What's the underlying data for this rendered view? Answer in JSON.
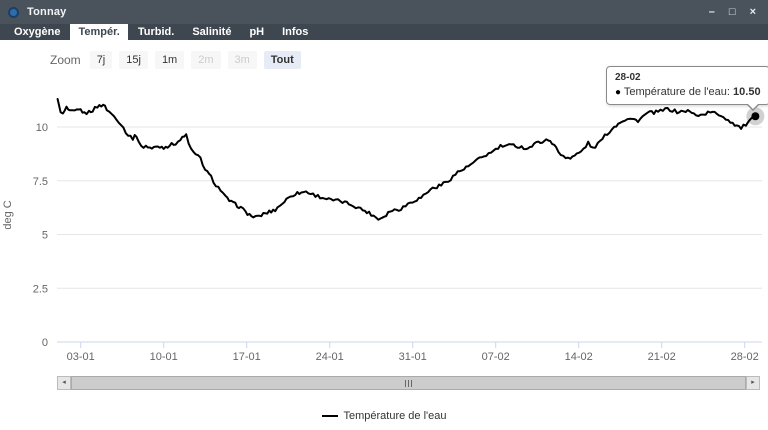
{
  "window": {
    "title": "Tonnay",
    "icons": {
      "minimize": "–",
      "maximize": "□",
      "close": "×",
      "scroll_left": "◂",
      "scroll_right": "▸"
    }
  },
  "tabs": [
    {
      "label": "Oxygène",
      "active": false
    },
    {
      "label": "Tempér.",
      "active": true
    },
    {
      "label": "Turbid.",
      "active": false
    },
    {
      "label": "Salinité",
      "active": false
    },
    {
      "label": "pH",
      "active": false
    },
    {
      "label": "Infos",
      "active": false
    }
  ],
  "zoom": {
    "label": "Zoom",
    "buttons": [
      {
        "label": "7j",
        "state": "normal"
      },
      {
        "label": "15j",
        "state": "normal"
      },
      {
        "label": "1m",
        "state": "normal"
      },
      {
        "label": "2m",
        "state": "disabled"
      },
      {
        "label": "3m",
        "state": "disabled"
      },
      {
        "label": "Tout",
        "state": "active"
      }
    ]
  },
  "tooltip": {
    "date": "28-02",
    "bullet": "●",
    "series_label": "Température de l'eau:",
    "value": "10.50"
  },
  "legend": {
    "label": "Température de l'eau"
  },
  "colors": {
    "titlebar_bg": "#4a535c",
    "tabbar_bg": "#3e474f",
    "accent_blue": "#2e6cad",
    "series": "#000000",
    "grid": "#e6e6e6",
    "axis_line": "#ccd6eb",
    "muted_text": "#666666",
    "button_active_bg": "#e6ebf5"
  },
  "chart_data": {
    "type": "line",
    "title": "",
    "xlabel": "",
    "ylabel": "deg C",
    "ylim": [
      0,
      11.5
    ],
    "grid": "horizontal",
    "legend_position": "bottom",
    "x_axis_note": "t = day index, t=1 is 01-01, t=59 is 28-02",
    "yticks": [
      {
        "v": 0,
        "label": "0"
      },
      {
        "v": 2.5,
        "label": "2.5"
      },
      {
        "v": 5,
        "label": "5"
      },
      {
        "v": 7.5,
        "label": "7.5"
      },
      {
        "v": 10,
        "label": "10"
      }
    ],
    "xticks": [
      {
        "t": 3,
        "label": "03-01"
      },
      {
        "t": 10,
        "label": "10-01"
      },
      {
        "t": 17,
        "label": "17-01"
      },
      {
        "t": 24,
        "label": "24-01"
      },
      {
        "t": 31,
        "label": "31-01"
      },
      {
        "t": 38,
        "label": "07-02"
      },
      {
        "t": 45,
        "label": "14-02"
      },
      {
        "t": 52,
        "label": "21-02"
      },
      {
        "t": 59,
        "label": "28-02"
      }
    ],
    "series": [
      {
        "name": "Température de l'eau",
        "color": "#000000",
        "points": [
          [
            1.05,
            11.25
          ],
          [
            1.3,
            10.75
          ],
          [
            1.5,
            10.58
          ],
          [
            1.8,
            10.9
          ],
          [
            2.1,
            10.7
          ],
          [
            2.5,
            10.72
          ],
          [
            3.0,
            10.8
          ],
          [
            3.3,
            10.62
          ],
          [
            3.7,
            10.7
          ],
          [
            4.0,
            10.78
          ],
          [
            4.4,
            10.95
          ],
          [
            4.9,
            11.05
          ],
          [
            5.2,
            10.82
          ],
          [
            5.6,
            10.6
          ],
          [
            6.0,
            10.42
          ],
          [
            6.4,
            10.12
          ],
          [
            7.0,
            9.62
          ],
          [
            7.4,
            9.48
          ],
          [
            7.7,
            9.62
          ],
          [
            8.1,
            9.06
          ],
          [
            8.5,
            9.12
          ],
          [
            9.0,
            9.0
          ],
          [
            9.5,
            9.1
          ],
          [
            10.0,
            9.05
          ],
          [
            10.5,
            9.15
          ],
          [
            11.0,
            9.25
          ],
          [
            11.4,
            9.4
          ],
          [
            11.9,
            9.63
          ],
          [
            12.3,
            8.95
          ],
          [
            12.7,
            8.7
          ],
          [
            13.1,
            8.55
          ],
          [
            13.5,
            8.0
          ],
          [
            14.0,
            7.67
          ],
          [
            14.4,
            7.3
          ],
          [
            14.8,
            7.07
          ],
          [
            15.2,
            6.74
          ],
          [
            15.7,
            6.5
          ],
          [
            16.2,
            6.35
          ],
          [
            16.5,
            6.25
          ],
          [
            16.9,
            6.05
          ],
          [
            17.4,
            5.85
          ],
          [
            17.9,
            5.8
          ],
          [
            18.4,
            5.95
          ],
          [
            18.9,
            6.05
          ],
          [
            19.4,
            6.15
          ],
          [
            20.0,
            6.45
          ],
          [
            20.7,
            6.8
          ],
          [
            21.1,
            6.9
          ],
          [
            21.6,
            6.95
          ],
          [
            22.0,
            7.0
          ],
          [
            22.4,
            6.9
          ],
          [
            23.2,
            6.75
          ],
          [
            24.1,
            6.6
          ],
          [
            24.9,
            6.55
          ],
          [
            25.8,
            6.4
          ],
          [
            26.6,
            6.2
          ],
          [
            27.5,
            5.95
          ],
          [
            28.1,
            5.72
          ],
          [
            28.6,
            5.85
          ],
          [
            29.1,
            6.1
          ],
          [
            30.0,
            6.2
          ],
          [
            30.8,
            6.5
          ],
          [
            31.7,
            6.72
          ],
          [
            32.5,
            7.1
          ],
          [
            33.4,
            7.3
          ],
          [
            34.2,
            7.6
          ],
          [
            34.8,
            7.9
          ],
          [
            35.5,
            8.1
          ],
          [
            36.3,
            8.4
          ],
          [
            37.0,
            8.65
          ],
          [
            37.6,
            8.8
          ],
          [
            38.4,
            9.1
          ],
          [
            39.5,
            9.15
          ],
          [
            40.7,
            9.0
          ],
          [
            41.6,
            9.3
          ],
          [
            42.6,
            9.4
          ],
          [
            43.1,
            9.0
          ],
          [
            43.5,
            8.7
          ],
          [
            44.3,
            8.55
          ],
          [
            45.2,
            8.85
          ],
          [
            45.8,
            9.25
          ],
          [
            46.2,
            9.0
          ],
          [
            46.6,
            9.2
          ],
          [
            47.4,
            9.7
          ],
          [
            48.0,
            10.0
          ],
          [
            48.5,
            10.25
          ],
          [
            49.1,
            10.4
          ],
          [
            50.0,
            10.3
          ],
          [
            50.8,
            10.65
          ],
          [
            51.7,
            10.7
          ],
          [
            52.5,
            10.85
          ],
          [
            53.3,
            10.7
          ],
          [
            54.2,
            10.75
          ],
          [
            54.7,
            10.6
          ],
          [
            55.3,
            10.55
          ],
          [
            56.1,
            10.7
          ],
          [
            57.0,
            10.55
          ],
          [
            57.8,
            10.25
          ],
          [
            58.7,
            9.95
          ],
          [
            59.3,
            10.2
          ],
          [
            59.9,
            10.5
          ]
        ],
        "hover_point": {
          "date": "28-02",
          "value": 10.5
        }
      }
    ]
  }
}
